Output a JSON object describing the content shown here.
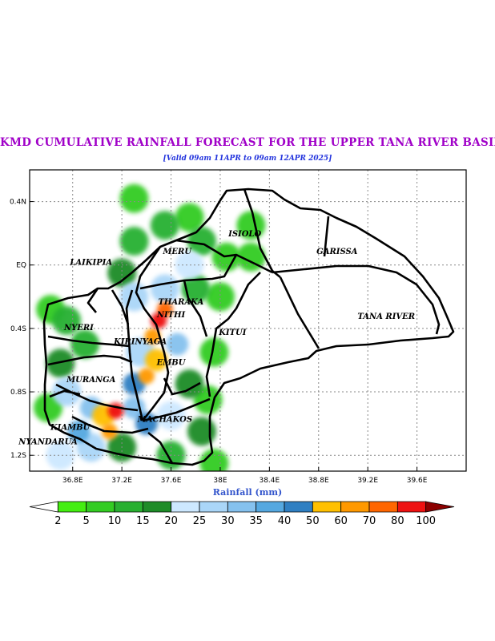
{
  "title": "KMD CUMULATIVE RAINFALL FORECAST FOR THE UPPER TANA RIVER BASIN.",
  "subtitle": "[Valid 09am 11APR to 09am 12APR 2025]",
  "chart_data": {
    "type": "heatmap",
    "title": "KMD CUMULATIVE RAINFALL FORECAST FOR THE UPPER TANA RIVER BASIN.",
    "xlabel": "Rainfall (mm)",
    "x_ticks": [
      "36.8E",
      "37.2E",
      "37.6E",
      "38E",
      "38.4E",
      "38.8E",
      "39.2E",
      "39.6E"
    ],
    "y_ticks": [
      "0.4N",
      "EQ",
      "0.4S",
      "0.8S",
      "1.2S"
    ],
    "xlim": [
      36.45,
      40.0
    ],
    "ylim": [
      -1.3,
      0.6
    ],
    "grid": true,
    "regions": [
      {
        "name": "LAIKIPIA",
        "lon": 36.95,
        "lat": 0.0
      },
      {
        "name": "MERU",
        "lon": 37.65,
        "lat": 0.07
      },
      {
        "name": "ISIOLO",
        "lon": 38.2,
        "lat": 0.18
      },
      {
        "name": "GARISSA",
        "lon": 38.95,
        "lat": 0.07
      },
      {
        "name": "THARAKA",
        "lon": 37.68,
        "lat": -0.25
      },
      {
        "name": "NITHI",
        "lon": 37.6,
        "lat": -0.33
      },
      {
        "name": "NYERI",
        "lon": 36.85,
        "lat": -0.41
      },
      {
        "name": "KITUI",
        "lon": 38.1,
        "lat": -0.44
      },
      {
        "name": "TANA RIVER",
        "lon": 39.35,
        "lat": -0.34
      },
      {
        "name": "KIRINYAGA",
        "lon": 37.35,
        "lat": -0.5
      },
      {
        "name": "EMBU",
        "lon": 37.6,
        "lat": -0.63
      },
      {
        "name": "MURANGA",
        "lon": 36.95,
        "lat": -0.74
      },
      {
        "name": "KIAMBU",
        "lon": 36.78,
        "lat": -1.04
      },
      {
        "name": "MACHAKOS",
        "lon": 37.55,
        "lat": -0.99
      },
      {
        "name": "NYANDARUA",
        "lon": 36.6,
        "lat": -1.13
      }
    ],
    "colorbar": {
      "labels": [
        "2",
        "5",
        "10",
        "15",
        "20",
        "25",
        "30",
        "35",
        "40",
        "50",
        "60",
        "70",
        "80",
        "100"
      ],
      "colors": [
        "#ffffff",
        "#44ee11",
        "#33cc22",
        "#28b030",
        "#1e8c28",
        "#cde8ff",
        "#aad6f8",
        "#85c1ee",
        "#55a8e0",
        "#2f7fc2",
        "#ffc000",
        "#ff9900",
        "#ff6600",
        "#ee1111",
        "#8b0000"
      ]
    },
    "rain_blobs": [
      {
        "lon": 36.62,
        "lat": -0.28,
        "value": 8
      },
      {
        "lon": 36.75,
        "lat": -0.35,
        "value": 12
      },
      {
        "lon": 36.9,
        "lat": -0.5,
        "value": 10
      },
      {
        "lon": 36.7,
        "lat": -0.62,
        "value": 15
      },
      {
        "lon": 36.75,
        "lat": -0.8,
        "value": 25
      },
      {
        "lon": 36.95,
        "lat": -0.9,
        "value": 30
      },
      {
        "lon": 37.05,
        "lat": -0.95,
        "value": 55
      },
      {
        "lon": 37.15,
        "lat": -0.92,
        "value": 80
      },
      {
        "lon": 37.1,
        "lat": -1.05,
        "value": 60
      },
      {
        "lon": 36.85,
        "lat": -1.05,
        "value": 35
      },
      {
        "lon": 36.95,
        "lat": -1.15,
        "value": 25
      },
      {
        "lon": 36.7,
        "lat": -1.2,
        "value": 20
      },
      {
        "lon": 37.2,
        "lat": -1.15,
        "value": 15
      },
      {
        "lon": 37.3,
        "lat": -0.75,
        "value": 40
      },
      {
        "lon": 37.35,
        "lat": -0.55,
        "value": 25
      },
      {
        "lon": 37.45,
        "lat": -0.45,
        "value": 60
      },
      {
        "lon": 37.48,
        "lat": -0.6,
        "value": 55
      },
      {
        "lon": 37.55,
        "lat": -0.28,
        "value": 70
      },
      {
        "lon": 37.5,
        "lat": -0.35,
        "value": 85
      },
      {
        "lon": 37.4,
        "lat": -0.7,
        "value": 60
      },
      {
        "lon": 37.3,
        "lat": -0.2,
        "value": 25
      },
      {
        "lon": 37.2,
        "lat": -0.05,
        "value": 15
      },
      {
        "lon": 37.3,
        "lat": 0.15,
        "value": 12
      },
      {
        "lon": 37.55,
        "lat": 0.25,
        "value": 10
      },
      {
        "lon": 37.75,
        "lat": 0.3,
        "value": 8
      },
      {
        "lon": 37.85,
        "lat": 0.15,
        "value": 10
      },
      {
        "lon": 37.75,
        "lat": 0.0,
        "value": 20
      },
      {
        "lon": 37.8,
        "lat": -0.15,
        "value": 12
      },
      {
        "lon": 37.65,
        "lat": -0.5,
        "value": 30
      },
      {
        "lon": 37.75,
        "lat": -0.75,
        "value": 15
      },
      {
        "lon": 37.6,
        "lat": -0.95,
        "value": 20
      },
      {
        "lon": 37.85,
        "lat": -1.05,
        "value": 15
      },
      {
        "lon": 37.9,
        "lat": -0.85,
        "value": 8
      },
      {
        "lon": 37.95,
        "lat": -0.55,
        "value": 6
      },
      {
        "lon": 38.0,
        "lat": -0.2,
        "value": 6
      },
      {
        "lon": 38.05,
        "lat": 0.05,
        "value": 5
      },
      {
        "lon": 37.4,
        "lat": -1.0,
        "value": 45
      },
      {
        "lon": 37.3,
        "lat": -0.9,
        "value": 30
      },
      {
        "lon": 37.6,
        "lat": -1.2,
        "value": 12
      },
      {
        "lon": 37.95,
        "lat": -1.25,
        "value": 8
      },
      {
        "lon": 38.25,
        "lat": 0.25,
        "value": 8
      },
      {
        "lon": 38.25,
        "lat": 0.05,
        "value": 6
      },
      {
        "lon": 37.3,
        "lat": 0.42,
        "value": 8
      },
      {
        "lon": 36.6,
        "lat": -0.9,
        "value": 8
      },
      {
        "lon": 37.55,
        "lat": -0.15,
        "value": 25
      }
    ]
  }
}
